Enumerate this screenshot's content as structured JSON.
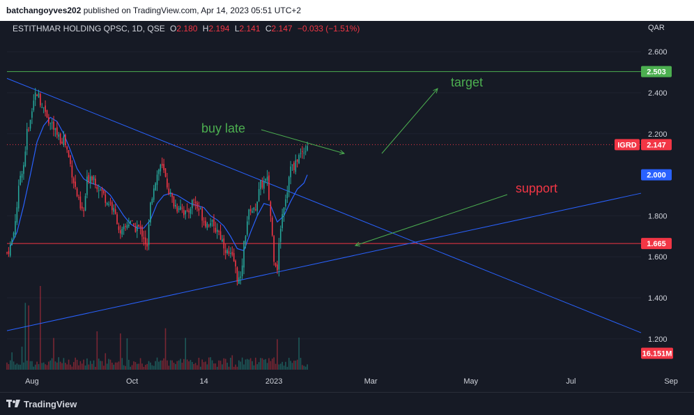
{
  "header": {
    "user": "batchangoyves202",
    "published_text": "published on TradingView.com, Apr 14, 2023 05:51 UTC+2"
  },
  "legend": {
    "symbol": "ESTITHMAR HOLDING QPSC, 1D, QSE",
    "o_label": "O",
    "o_value": "2.180",
    "h_label": "H",
    "h_value": "2.194",
    "l_label": "L",
    "l_value": "2.141",
    "c_label": "C",
    "c_value": "2.147",
    "change": "−0.033 (−1.51%)"
  },
  "currency": "QAR",
  "footer": {
    "logo_text": "TradingView"
  },
  "colors": {
    "background": "#161a25",
    "up": "#26a69a",
    "down": "#f23645",
    "ma": "#2962ff",
    "trendline": "#2962ff",
    "target_line": "#4caf50",
    "support_line": "#f23645",
    "annotation_green": "#4caf50",
    "annotation_red": "#f23645"
  },
  "chart_data": {
    "type": "candlestick",
    "ylim": [
      1.05,
      2.75
    ],
    "y_ticks": [
      "2.600",
      "2.400",
      "2.200",
      "1.800",
      "1.600",
      "1.400",
      "1.200"
    ],
    "x_ticks": [
      "Aug",
      "Oct",
      "14",
      "2023",
      "Mar",
      "May",
      "Jul",
      "Sep"
    ],
    "price_tags": [
      {
        "label": "2.503",
        "value": 2.503,
        "color": "#4caf50"
      },
      {
        "label": "2.147",
        "value": 2.147,
        "color": "#f23645",
        "prefix": "IGRD"
      },
      {
        "label": "2.000",
        "value": 2.0,
        "color": "#2962ff"
      },
      {
        "label": "1.665",
        "value": 1.665,
        "color": "#f23645"
      },
      {
        "label": "16.151M",
        "value": 1.13,
        "color": "#f23645"
      }
    ],
    "horizontal_lines": [
      {
        "name": "target",
        "value": 2.503,
        "color": "#4caf50",
        "style": "solid"
      },
      {
        "name": "support",
        "value": 1.665,
        "color": "#f23645",
        "style": "solid"
      },
      {
        "name": "last-price",
        "value": 2.147,
        "color": "#f23645",
        "style": "dotted"
      }
    ],
    "annotations": [
      {
        "text": "target",
        "color": "#4caf50"
      },
      {
        "text": "buy late",
        "color": "#4caf50"
      },
      {
        "text": "support",
        "color": "#f23645"
      }
    ],
    "price_path": [
      [
        0,
        1.62
      ],
      [
        2,
        1.65
      ],
      [
        4,
        1.72
      ],
      [
        6,
        1.85
      ],
      [
        8,
        2.0
      ],
      [
        10,
        2.05
      ],
      [
        12,
        2.2
      ],
      [
        14,
        2.28
      ],
      [
        16,
        2.38
      ],
      [
        18,
        2.4
      ],
      [
        20,
        2.36
      ],
      [
        22,
        2.33
      ],
      [
        24,
        2.3
      ],
      [
        26,
        2.25
      ],
      [
        28,
        2.22
      ],
      [
        30,
        2.2
      ],
      [
        32,
        2.17
      ],
      [
        34,
        2.18
      ],
      [
        36,
        2.12
      ],
      [
        38,
        2.05
      ],
      [
        40,
        1.97
      ],
      [
        42,
        1.9
      ],
      [
        44,
        1.83
      ],
      [
        46,
        1.82
      ],
      [
        48,
        1.97
      ],
      [
        50,
        2.0
      ],
      [
        52,
        1.99
      ],
      [
        54,
        1.95
      ],
      [
        56,
        1.93
      ],
      [
        58,
        1.9
      ],
      [
        60,
        1.87
      ],
      [
        62,
        1.86
      ],
      [
        64,
        1.82
      ],
      [
        66,
        1.78
      ],
      [
        68,
        1.7
      ],
      [
        70,
        1.73
      ],
      [
        72,
        1.76
      ],
      [
        74,
        1.78
      ],
      [
        76,
        1.73
      ],
      [
        78,
        1.75
      ],
      [
        80,
        1.73
      ],
      [
        82,
        1.7
      ],
      [
        84,
        1.64
      ],
      [
        86,
        1.85
      ],
      [
        88,
        1.95
      ],
      [
        90,
        2.0
      ],
      [
        92,
        2.05
      ],
      [
        94,
        2.01
      ],
      [
        96,
        1.95
      ],
      [
        98,
        1.9
      ],
      [
        100,
        1.86
      ],
      [
        102,
        1.84
      ],
      [
        104,
        1.86
      ],
      [
        106,
        1.82
      ],
      [
        108,
        1.8
      ],
      [
        110,
        1.85
      ],
      [
        112,
        1.88
      ],
      [
        114,
        1.84
      ],
      [
        116,
        1.82
      ],
      [
        118,
        1.78
      ],
      [
        120,
        1.76
      ],
      [
        122,
        1.78
      ],
      [
        124,
        1.73
      ],
      [
        126,
        1.74
      ],
      [
        128,
        1.7
      ],
      [
        130,
        1.66
      ],
      [
        132,
        1.62
      ],
      [
        134,
        1.6
      ],
      [
        136,
        1.58
      ],
      [
        138,
        1.5
      ],
      [
        140,
        1.48
      ],
      [
        142,
        1.66
      ],
      [
        144,
        1.78
      ],
      [
        146,
        1.84
      ],
      [
        148,
        1.82
      ],
      [
        150,
        1.88
      ],
      [
        152,
        1.95
      ],
      [
        154,
        1.96
      ],
      [
        156,
        1.97
      ],
      [
        158,
        1.8
      ],
      [
        160,
        1.6
      ],
      [
        162,
        1.55
      ],
      [
        164,
        1.75
      ],
      [
        166,
        1.86
      ],
      [
        168,
        1.93
      ],
      [
        170,
        2.06
      ],
      [
        172,
        2.02
      ],
      [
        174,
        2.08
      ],
      [
        176,
        2.1
      ],
      [
        178,
        2.12
      ],
      [
        180,
        2.15
      ]
    ],
    "ma_path": [
      [
        2,
        1.65
      ],
      [
        6,
        1.72
      ],
      [
        10,
        1.85
      ],
      [
        14,
        2.0
      ],
      [
        18,
        2.16
      ],
      [
        22,
        2.24
      ],
      [
        26,
        2.28
      ],
      [
        30,
        2.26
      ],
      [
        34,
        2.2
      ],
      [
        38,
        2.12
      ],
      [
        42,
        2.03
      ],
      [
        46,
        1.98
      ],
      [
        50,
        1.96
      ],
      [
        54,
        1.95
      ],
      [
        58,
        1.93
      ],
      [
        62,
        1.9
      ],
      [
        66,
        1.85
      ],
      [
        70,
        1.8
      ],
      [
        74,
        1.76
      ],
      [
        78,
        1.74
      ],
      [
        82,
        1.74
      ],
      [
        86,
        1.78
      ],
      [
        90,
        1.86
      ],
      [
        94,
        1.9
      ],
      [
        98,
        1.91
      ],
      [
        102,
        1.9
      ],
      [
        106,
        1.88
      ],
      [
        110,
        1.86
      ],
      [
        114,
        1.85
      ],
      [
        118,
        1.84
      ],
      [
        122,
        1.8
      ],
      [
        126,
        1.78
      ],
      [
        130,
        1.75
      ],
      [
        134,
        1.7
      ],
      [
        138,
        1.64
      ],
      [
        142,
        1.63
      ],
      [
        146,
        1.72
      ],
      [
        150,
        1.8
      ],
      [
        154,
        1.86
      ],
      [
        158,
        1.85
      ],
      [
        162,
        1.77
      ],
      [
        166,
        1.8
      ],
      [
        170,
        1.87
      ],
      [
        174,
        1.93
      ],
      [
        178,
        1.96
      ],
      [
        180,
        2.0
      ]
    ]
  }
}
